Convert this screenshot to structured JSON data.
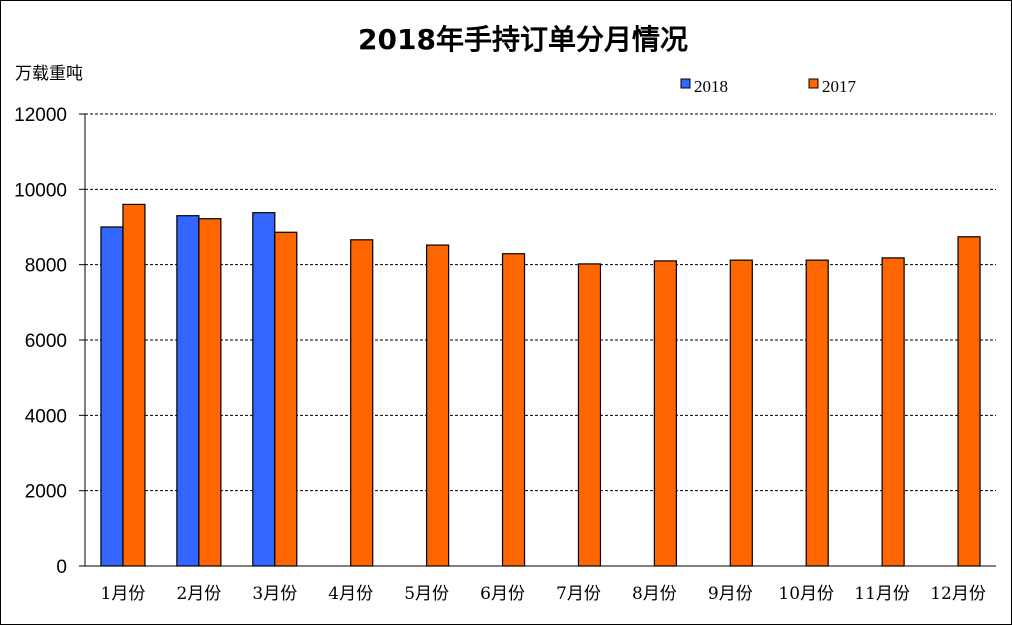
{
  "chart_data": {
    "type": "bar",
    "title": "2018年手持订单分月情况",
    "ylabel": "万载重吨",
    "xlabel": "",
    "ylim": [
      0,
      12000
    ],
    "yticks": [
      0,
      2000,
      4000,
      6000,
      8000,
      10000,
      12000
    ],
    "grid": "horizontal-dashed",
    "legend_position": "top-right",
    "categories": [
      "1月份",
      "2月份",
      "3月份",
      "4月份",
      "5月份",
      "6月份",
      "7月份",
      "8月份",
      "9月份",
      "10月份",
      "11月份",
      "12月份"
    ],
    "series": [
      {
        "name": "2018",
        "color": "#3366FF",
        "values": [
          9000,
          9300,
          9380,
          null,
          null,
          null,
          null,
          null,
          null,
          null,
          null,
          null
        ]
      },
      {
        "name": "2017",
        "color": "#FF6600",
        "values": [
          9600,
          9220,
          8860,
          8660,
          8520,
          8290,
          8020,
          8100,
          8120,
          8120,
          8180,
          8740
        ]
      }
    ]
  }
}
